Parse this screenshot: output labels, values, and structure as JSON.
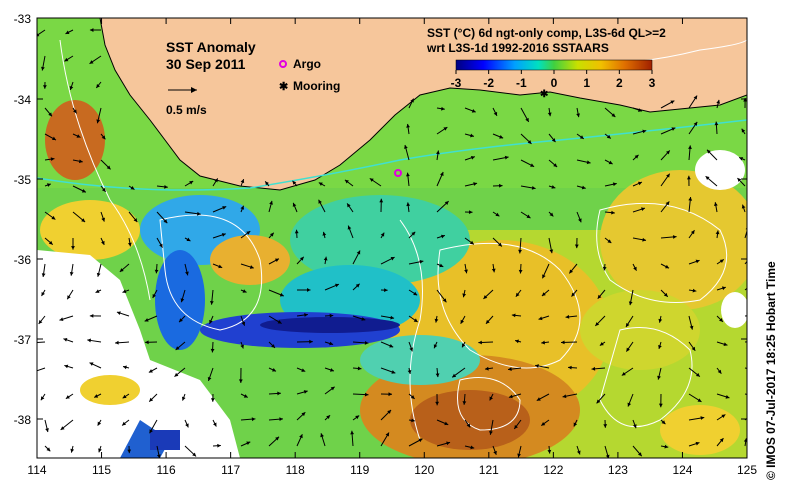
{
  "map": {
    "title": "SST Anomaly",
    "date": "30 Sep 2011",
    "scale_label": "0.5 m/s",
    "legend_argo": "Argo",
    "legend_mooring": "Mooring",
    "colorbar_title_1": "SST (°C) 6d ngt-only comp, L3S-6d QL>=2",
    "colorbar_title_2": "wrt L3S-1d 1992-2016 SSTAARS",
    "colorbar_ticks": [
      "-3",
      "-2",
      "-1",
      "0",
      "1",
      "2",
      "3"
    ],
    "x_ticks": [
      "114",
      "115",
      "116",
      "117",
      "118",
      "119",
      "120",
      "121",
      "122",
      "123",
      "124",
      "125"
    ],
    "y_ticks": [
      "-33",
      "-34",
      "-35",
      "-36",
      "-37",
      "-38"
    ],
    "credit": "©  IMOS 07-Jul-2017 18:25 Hobart Time",
    "colors": {
      "land": "#f6c69b",
      "argo": "#e000e0",
      "contour": "#ffffff",
      "coast_current": "#40e0d0"
    },
    "icons": [
      "argo-marker-icon",
      "mooring-marker-icon",
      "velocity-arrow-icon"
    ]
  }
}
